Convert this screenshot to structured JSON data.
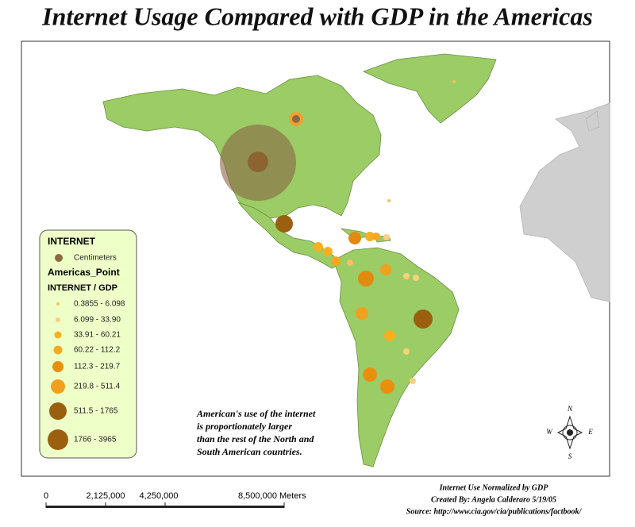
{
  "title": "Internet Usage Compared with GDP in the Americas",
  "legend": {
    "title": "INTERNET",
    "symbol_label": "Centimeters",
    "layer": "Americas_Point",
    "field": "INTERNET / GDP",
    "classes": [
      "0.3855 - 6.098",
      "6.099 - 33.90",
      "33.91 - 60.21",
      "60.22 - 112.2",
      "112.3 - 219.7",
      "219.8 - 511.4",
      "511.5 - 1765",
      "1766 - 3965"
    ]
  },
  "annotation": {
    "lines": [
      "American's use of the internet",
      "is proportionately larger",
      "than the rest of the North and",
      "South American countries."
    ]
  },
  "scale_bar": {
    "labels": [
      "0",
      "2,125,000",
      "4,250,000",
      "8,500,000 Meters"
    ]
  },
  "credits": {
    "lines": [
      "Internet Use Normalized by GDP",
      "Created By: Angela Calderaro 5/19/05",
      "Source: http://www.cia.gov/cia/publications/factbook/"
    ]
  },
  "compass": {
    "n": "N",
    "s": "S",
    "e": "E",
    "w": "W"
  }
}
